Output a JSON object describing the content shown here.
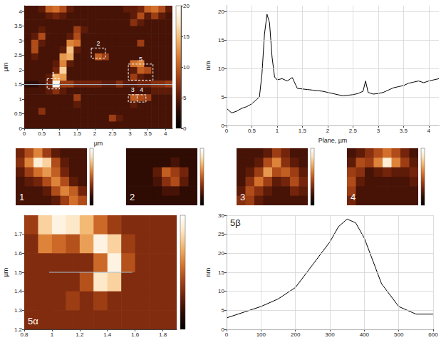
{
  "chart_data": [
    {
      "type": "heatmap",
      "xlabel": "µm",
      "ylabel": "µm",
      "xlim": [
        0,
        4.2
      ],
      "ylim": [
        0,
        4.2
      ],
      "xticks": [
        0,
        0.5,
        1,
        1.5,
        2,
        2.5,
        3,
        3.5,
        4
      ],
      "yticks": [
        0,
        0.5,
        1,
        1.5,
        2,
        2.5,
        3,
        3.5,
        4
      ],
      "zlim": [
        0,
        20
      ],
      "zticks": [
        0,
        5,
        10,
        15,
        20
      ],
      "cells": [
        [
          4,
          4,
          5,
          10,
          11,
          9,
          5,
          4,
          4,
          4,
          4,
          4,
          4,
          4,
          5,
          5,
          6,
          10,
          11,
          9,
          5
        ],
        [
          4,
          4,
          4,
          5,
          6,
          5,
          4,
          4,
          4,
          4,
          4,
          4,
          4,
          4,
          4,
          5,
          9,
          5,
          8,
          5,
          4
        ],
        [
          4,
          4,
          4,
          4,
          4,
          4,
          4,
          4,
          4,
          4,
          4,
          4,
          4,
          4,
          4,
          7,
          5,
          4,
          4,
          4,
          4
        ],
        [
          4,
          4,
          5,
          4,
          4,
          4,
          4,
          8,
          5,
          4,
          4,
          4,
          4,
          4,
          4,
          4,
          4,
          4,
          4,
          4,
          4
        ],
        [
          4,
          5,
          9,
          4,
          4,
          4,
          5,
          9,
          4,
          4,
          4,
          4,
          4,
          4,
          4,
          4,
          4,
          4,
          4,
          4,
          4
        ],
        [
          4,
          9,
          5,
          4,
          4,
          4,
          12,
          11,
          4,
          4,
          4,
          4,
          4,
          4,
          4,
          4,
          8,
          4,
          4,
          4,
          4
        ],
        [
          4,
          9,
          4,
          4,
          4,
          5,
          15,
          5,
          4,
          4,
          4,
          4,
          4,
          4,
          4,
          4,
          4,
          4,
          4,
          4,
          4
        ],
        [
          4,
          5,
          4,
          4,
          4,
          13,
          14,
          4,
          4,
          4,
          10,
          8,
          4,
          4,
          4,
          4,
          4,
          4,
          4,
          4,
          4
        ],
        [
          4,
          4,
          4,
          4,
          5,
          12,
          5,
          4,
          4,
          4,
          4,
          4,
          4,
          4,
          4,
          11,
          12,
          4,
          4,
          4,
          4
        ],
        [
          4,
          4,
          4,
          4,
          6,
          16,
          4,
          4,
          4,
          4,
          4,
          4,
          4,
          4,
          4,
          5,
          10,
          9,
          4,
          4,
          4
        ],
        [
          4,
          4,
          4,
          5,
          14,
          13,
          4,
          4,
          4,
          4,
          4,
          4,
          4,
          4,
          4,
          8,
          5,
          4,
          4,
          4,
          4
        ],
        [
          3,
          3,
          4,
          6,
          19,
          8,
          8,
          6,
          6,
          6,
          6,
          5,
          5,
          7,
          5,
          5,
          6,
          6,
          7,
          7,
          8
        ],
        [
          4,
          4,
          4,
          5,
          7,
          5,
          4,
          4,
          4,
          4,
          4,
          4,
          4,
          4,
          4,
          4,
          4,
          4,
          5,
          5,
          5
        ],
        [
          4,
          4,
          4,
          4,
          4,
          4,
          4,
          8,
          4,
          4,
          4,
          4,
          4,
          4,
          4,
          10,
          9,
          8,
          4,
          4,
          4
        ],
        [
          4,
          4,
          4,
          4,
          4,
          4,
          4,
          5,
          4,
          4,
          4,
          4,
          4,
          4,
          4,
          5,
          4,
          4,
          4,
          4,
          4
        ],
        [
          4,
          4,
          7,
          4,
          4,
          4,
          4,
          4,
          4,
          4,
          4,
          4,
          4,
          4,
          4,
          4,
          4,
          4,
          4,
          4,
          4
        ],
        [
          4,
          4,
          4,
          4,
          4,
          4,
          4,
          4,
          4,
          4,
          4,
          4,
          8,
          5,
          4,
          4,
          4,
          4,
          4,
          4,
          4
        ],
        [
          4,
          4,
          4,
          4,
          4,
          4,
          4,
          4,
          4,
          4,
          4,
          4,
          4,
          4,
          4,
          4,
          4,
          4,
          4,
          4,
          4
        ]
      ],
      "profile_line": {
        "y": 1.5
      },
      "annotations": [
        {
          "text": "1",
          "box": [
            0.65,
            1.0,
            1.35,
            1.7
          ]
        },
        {
          "text": "2",
          "box": [
            1.9,
            2.3,
            2.4,
            2.75
          ]
        },
        {
          "text": "5",
          "box": [
            2.95,
            3.65,
            1.65,
            2.2
          ]
        },
        {
          "text": "3",
          "box": [
            2.95,
            3.2,
            0.9,
            1.15
          ]
        },
        {
          "text": "4",
          "box": [
            3.2,
            3.45,
            0.9,
            1.15
          ]
        }
      ]
    },
    {
      "type": "line",
      "xlabel": "Plane, µm",
      "ylabel": "nm",
      "xlim": [
        0,
        4.2
      ],
      "ylim": [
        0,
        21
      ],
      "xticks": [
        0,
        0.5,
        1,
        1.5,
        2,
        2.5,
        3,
        3.5,
        4
      ],
      "yticks": [
        0,
        5,
        10,
        15,
        20
      ],
      "grid": true,
      "color": "#000000",
      "x": [
        0,
        0.1,
        0.2,
        0.3,
        0.4,
        0.5,
        0.6,
        0.65,
        0.7,
        0.75,
        0.8,
        0.85,
        0.9,
        0.95,
        1.0,
        1.1,
        1.2,
        1.3,
        1.4,
        1.5,
        1.6,
        1.7,
        1.8,
        1.9,
        2.0,
        2.1,
        2.2,
        2.3,
        2.4,
        2.5,
        2.6,
        2.7,
        2.75,
        2.8,
        2.9,
        3.0,
        3.1,
        3.2,
        3.3,
        3.4,
        3.5,
        3.6,
        3.7,
        3.8,
        3.9,
        4.0,
        4.1,
        4.2
      ],
      "values": [
        3,
        2.2,
        2.5,
        3,
        3.3,
        3.8,
        4.6,
        5,
        9,
        16,
        19.5,
        18,
        12,
        8.5,
        8,
        8.2,
        7.8,
        8.4,
        6.5,
        6.4,
        6.3,
        6.2,
        6.1,
        6,
        5.8,
        5.6,
        5.4,
        5.2,
        5.3,
        5.4,
        5.6,
        6,
        7.8,
        5.8,
        5.5,
        5.6,
        5.8,
        6.2,
        6.6,
        6.8,
        7,
        7.4,
        7.6,
        7.8,
        7.5,
        7.8,
        8,
        8.2
      ]
    },
    {
      "type": "heatmap",
      "title": "1",
      "tick_labels": false,
      "zlim": [
        0,
        20
      ],
      "cells": [
        [
          6,
          9,
          12,
          8,
          5,
          4,
          4,
          4
        ],
        [
          7,
          12,
          18,
          16,
          9,
          5,
          4,
          4
        ],
        [
          5,
          8,
          11,
          13,
          10,
          6,
          4,
          4
        ],
        [
          4,
          5,
          6,
          9,
          12,
          9,
          5,
          4
        ],
        [
          4,
          4,
          4,
          5,
          9,
          12,
          10,
          6
        ],
        [
          4,
          4,
          4,
          4,
          5,
          8,
          11,
          9
        ]
      ]
    },
    {
      "type": "heatmap",
      "title": "2",
      "tick_labels": false,
      "zlim": [
        0,
        20
      ],
      "cells": [
        [
          3,
          3,
          3,
          3,
          3,
          3,
          3,
          3
        ],
        [
          3,
          3,
          3,
          3,
          3,
          4,
          3,
          3
        ],
        [
          3,
          3,
          3,
          5,
          10,
          8,
          6,
          3
        ],
        [
          3,
          3,
          3,
          4,
          7,
          9,
          5,
          3
        ],
        [
          3,
          3,
          3,
          3,
          4,
          4,
          3,
          3
        ],
        [
          3,
          3,
          3,
          3,
          3,
          3,
          3,
          3
        ]
      ]
    },
    {
      "type": "heatmap",
      "title": "3",
      "tick_labels": false,
      "zlim": [
        0,
        20
      ],
      "cells": [
        [
          4,
          4,
          4,
          5,
          8,
          6,
          4,
          4
        ],
        [
          4,
          4,
          5,
          9,
          12,
          7,
          5,
          4
        ],
        [
          4,
          5,
          8,
          13,
          9,
          10,
          8,
          5
        ],
        [
          4,
          7,
          11,
          8,
          5,
          6,
          9,
          6
        ],
        [
          5,
          9,
          7,
          5,
          4,
          4,
          6,
          5
        ],
        [
          7,
          8,
          5,
          4,
          4,
          4,
          4,
          4
        ]
      ]
    },
    {
      "type": "heatmap",
      "title": "4",
      "tick_labels": false,
      "zlim": [
        0,
        20
      ],
      "cells": [
        [
          4,
          5,
          7,
          9,
          11,
          9,
          6,
          4
        ],
        [
          5,
          9,
          8,
          12,
          18,
          12,
          8,
          5
        ],
        [
          8,
          7,
          4,
          5,
          6,
          5,
          5,
          6
        ],
        [
          9,
          5,
          4,
          4,
          4,
          4,
          4,
          5
        ],
        [
          8,
          4,
          4,
          4,
          4,
          4,
          4,
          4
        ],
        [
          6,
          4,
          4,
          4,
          4,
          4,
          4,
          4
        ]
      ]
    },
    {
      "type": "heatmap",
      "title": "5α",
      "ylabel": "µm",
      "xlim": [
        0.8,
        1.9
      ],
      "ylim": [
        1.2,
        1.8
      ],
      "xticks": [
        0.8,
        1.0,
        1.2,
        1.4,
        1.6,
        1.8
      ],
      "yticks": [
        1.2,
        1.3,
        1.4,
        1.5,
        1.6,
        1.7
      ],
      "zlim": [
        0,
        15
      ],
      "cells": [
        [
          6,
          12,
          14,
          13,
          11,
          8,
          6,
          5,
          5,
          5,
          5
        ],
        [
          5,
          9,
          8,
          7,
          10,
          14,
          12,
          6,
          5,
          5,
          5
        ],
        [
          5,
          5,
          5,
          5,
          5,
          8,
          14,
          7,
          5,
          5,
          5
        ],
        [
          5,
          5,
          5,
          5,
          7,
          13,
          12,
          5,
          5,
          5,
          5
        ],
        [
          5,
          5,
          5,
          6,
          5,
          6,
          5,
          5,
          5,
          5,
          5
        ],
        [
          5,
          5,
          5,
          5,
          5,
          5,
          5,
          5,
          5,
          5,
          5
        ]
      ],
      "profile_line": {
        "y": 1.5,
        "x": [
          0.98,
          1.58
        ]
      }
    },
    {
      "type": "line",
      "title": "5β",
      "ylabel": "nm",
      "xlim": [
        0,
        600
      ],
      "ylim": [
        0,
        30
      ],
      "xticks": [
        0,
        100,
        200,
        300,
        400,
        500,
        600
      ],
      "yticks": [
        0,
        5,
        10,
        15,
        20,
        25,
        30
      ],
      "grid": true,
      "color": "#000000",
      "x": [
        0,
        50,
        100,
        150,
        200,
        250,
        300,
        325,
        350,
        375,
        400,
        450,
        500,
        550,
        600
      ],
      "values": [
        3,
        4.5,
        6,
        8,
        11,
        17,
        23,
        27,
        29,
        28,
        24,
        12,
        6,
        4,
        4
      ]
    }
  ]
}
